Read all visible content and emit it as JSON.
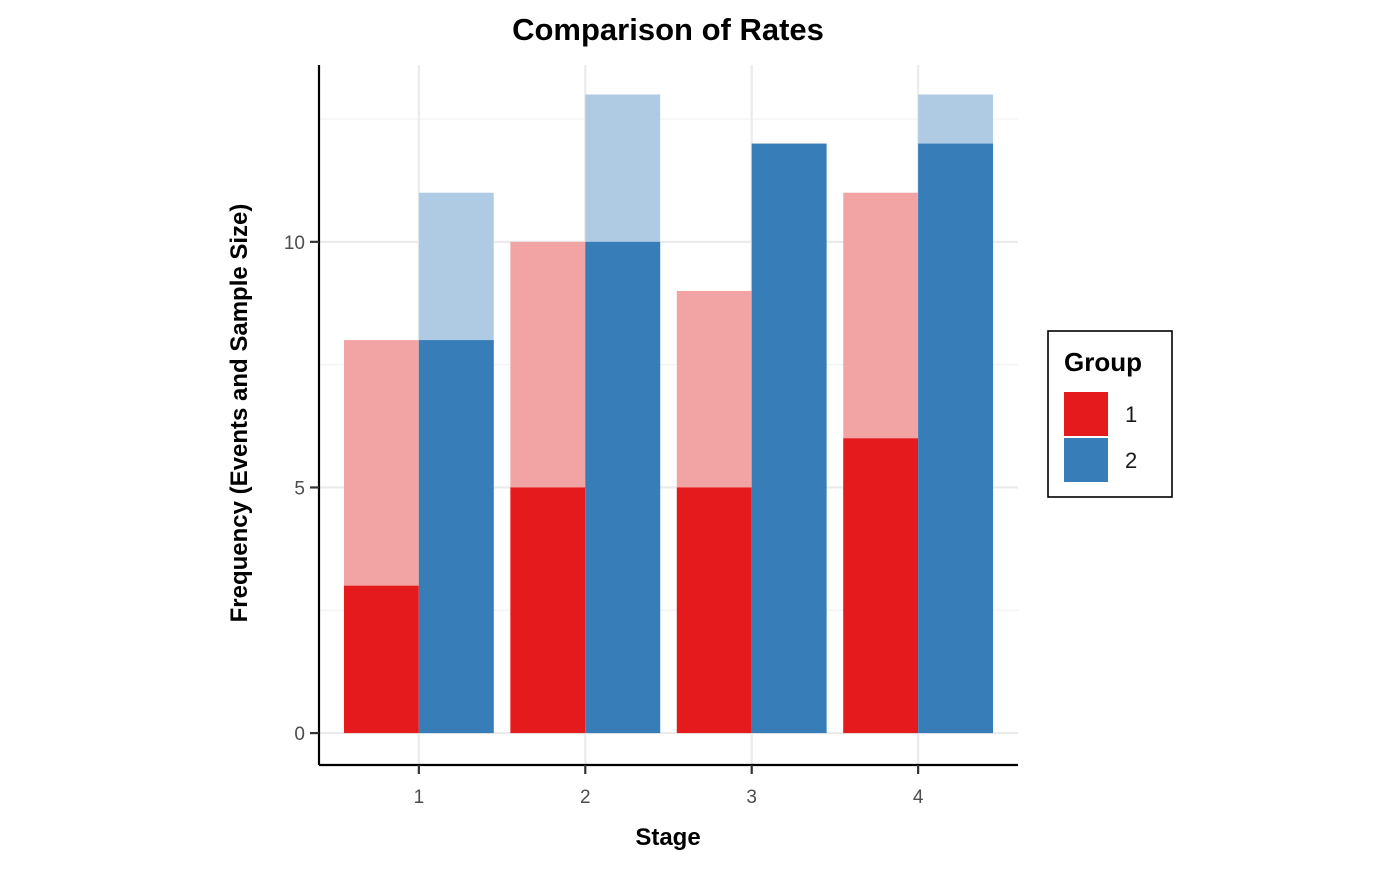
{
  "chart_data": {
    "type": "bar",
    "title": "Comparison of Rates",
    "xlabel": "Stage",
    "ylabel": "Frequency (Events and Sample Size)",
    "categories": [
      "1",
      "2",
      "3",
      "4"
    ],
    "series": [
      {
        "name": "1",
        "events": [
          3,
          5,
          5,
          6
        ],
        "sample_size": [
          8,
          10,
          9,
          11
        ],
        "color": "#E41A1C",
        "light_color": "#F2A3A4"
      },
      {
        "name": "2",
        "events": [
          8,
          10,
          12,
          12
        ],
        "sample_size": [
          11,
          13,
          12,
          13
        ],
        "color": "#377EB8",
        "light_color": "#AFCBE3"
      }
    ],
    "ylim": [
      -0.65,
      13.6
    ],
    "y_ticks": [
      "0",
      "5",
      "10"
    ],
    "grid": true,
    "legend": {
      "title": "Group",
      "placement": "right",
      "entries": [
        "1",
        "2"
      ]
    }
  }
}
